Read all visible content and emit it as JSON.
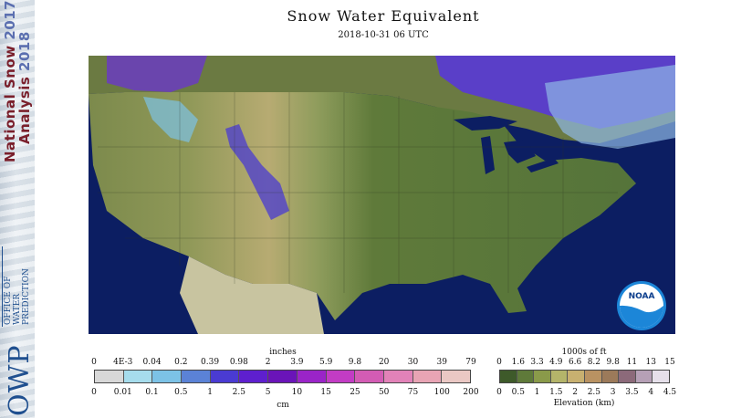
{
  "title": "Snow Water Equivalent",
  "timestamp": "2018-10-31 06 UTC",
  "branding": {
    "nsa_line1": "National Snow",
    "nsa_year1": "2017",
    "nsa_line2": "Analysis",
    "nsa_year2": "2018",
    "owp_abbrev": "OWP",
    "owp_name_1": "OFFICE OF",
    "owp_name_2": "WATER",
    "owp_name_3": "PREDICTION",
    "noaa": "NOAA"
  },
  "snow_legend": {
    "top_unit": "inches",
    "bottom_unit": "cm",
    "inches_ticks": [
      "0",
      "4E-3",
      "0.04",
      "0.2",
      "0.39",
      "0.98",
      "2",
      "3.9",
      "5.9",
      "9.8",
      "20",
      "30",
      "39",
      "79"
    ],
    "cm_ticks": [
      "0",
      "0.01",
      "0.1",
      "0.5",
      "1",
      "2.5",
      "5",
      "10",
      "15",
      "25",
      "50",
      "75",
      "100",
      "200"
    ],
    "colors": [
      "#d8d8d8",
      "#a6dcec",
      "#7cc2e6",
      "#5b82d6",
      "#4a3bd2",
      "#5e1fce",
      "#6a14b8",
      "#9a24c8",
      "#c23cc4",
      "#d35cb4",
      "#e282b8",
      "#e8a4b4",
      "#eac8c4"
    ]
  },
  "elevation_legend": {
    "top_unit": "1000s of ft",
    "bottom_unit": "Elevation (km)",
    "ft_ticks": [
      "0",
      "1.6",
      "3.3",
      "4.9",
      "6.6",
      "8.2",
      "9.8",
      "11",
      "13",
      "15"
    ],
    "km_ticks": [
      "0",
      "0.5",
      "1",
      "1.5",
      "2",
      "2.5",
      "3",
      "3.5",
      "4",
      "4.5"
    ],
    "colors": [
      "#3e5a2a",
      "#5f7a3a",
      "#8a9a4a",
      "#b4b46a",
      "#c8b070",
      "#b99262",
      "#9c7a5a",
      "#8c6a7a",
      "#b6a0b6",
      "#e6e0ea"
    ]
  }
}
